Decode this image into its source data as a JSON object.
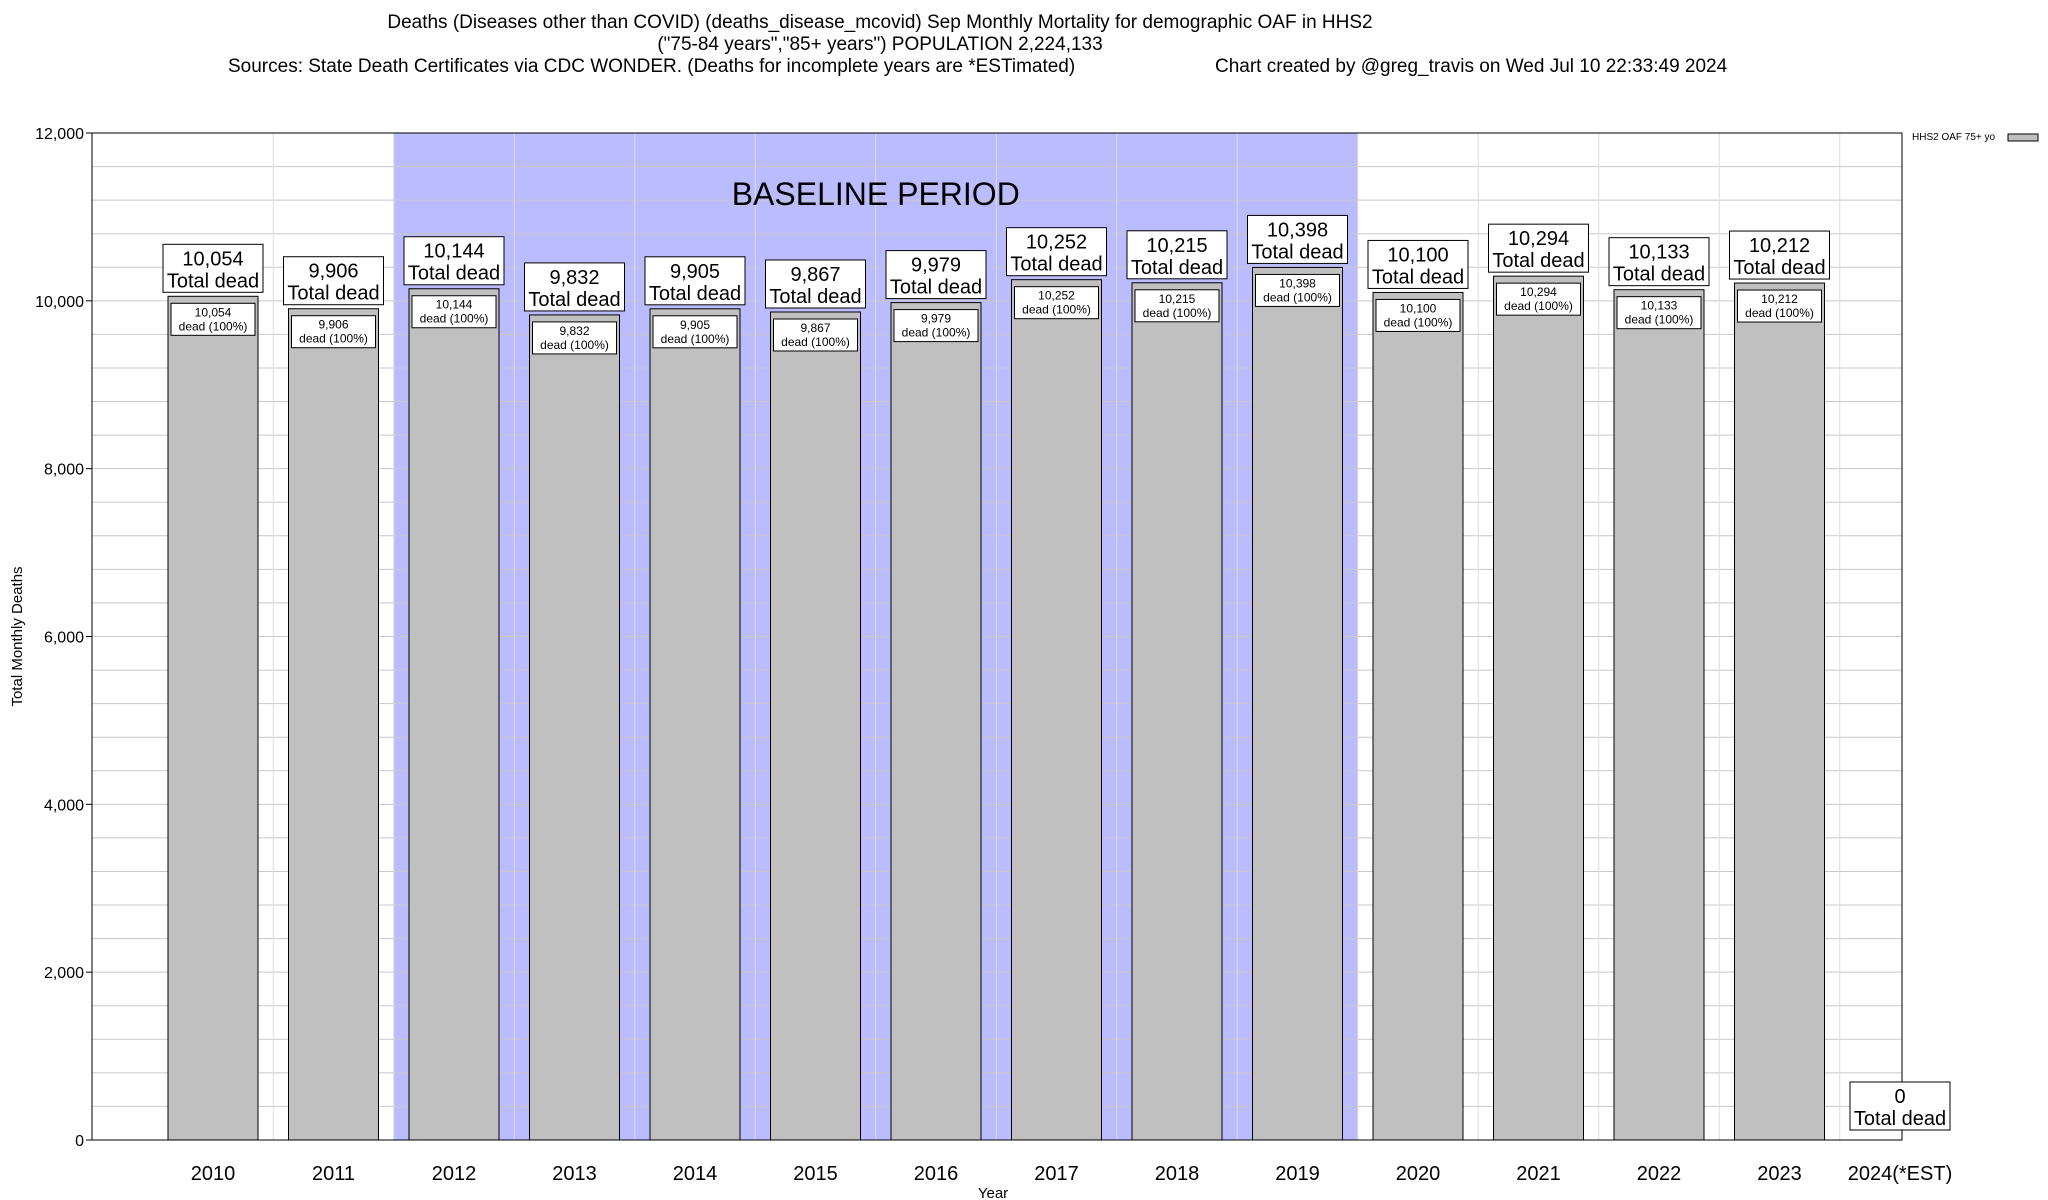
{
  "chart_data": {
    "type": "bar",
    "title": "Deaths (Diseases other than COVID) (deaths_disease_mcovid) Sep Monthly Mortality for demographic OAF in HHS2",
    "subtitle": "(\"75-84 years\",\"85+ years\") POPULATION 2,224,133",
    "sources": "Sources: State Death Certificates via CDC WONDER. (Deaths for incomplete years are *ESTimated)",
    "credit": "Chart created by @greg_travis on Wed Jul 10 22:33:49 2024",
    "xlabel": "Year",
    "ylabel": "Total Monthly Deaths",
    "ylim": [
      0,
      12000
    ],
    "yticks": [
      0,
      2000,
      4000,
      6000,
      8000,
      10000,
      12000
    ],
    "ytick_labels": [
      "0",
      "2,000",
      "4,000",
      "6,000",
      "8,000",
      "10,000",
      "12,000"
    ],
    "minor_grid_step": 400,
    "grid": true,
    "legend_position": "top-right",
    "categories": [
      "2010",
      "2011",
      "2012",
      "2013",
      "2014",
      "2015",
      "2016",
      "2017",
      "2018",
      "2019",
      "2020",
      "2021",
      "2022",
      "2023",
      "2024(*EST)"
    ],
    "series": [
      {
        "name": "HHS2 OAF 75+ yo",
        "values": [
          10054,
          9906,
          10144,
          9832,
          9905,
          9867,
          9979,
          10252,
          10215,
          10398,
          10100,
          10294,
          10133,
          10212,
          0
        ],
        "color": "#c0c0c0"
      }
    ],
    "total_labels": [
      "10,054",
      "9,906",
      "10,144",
      "9,832",
      "9,905",
      "9,867",
      "9,979",
      "10,252",
      "10,215",
      "10,398",
      "10,100",
      "10,294",
      "10,133",
      "10,212",
      "0"
    ],
    "total_suffix": "Total dead",
    "inner_labels": [
      "10,054",
      "9,906",
      "10,144",
      "9,832",
      "9,905",
      "9,867",
      "9,979",
      "10,252",
      "10,215",
      "10,398",
      "10,100",
      "10,294",
      "10,133",
      "10,212",
      ""
    ],
    "inner_suffix": "dead (100%)",
    "baseline": {
      "label": "BASELINE PERIOD",
      "start": "2012",
      "end": "2019",
      "color": "#bbbbff"
    }
  }
}
